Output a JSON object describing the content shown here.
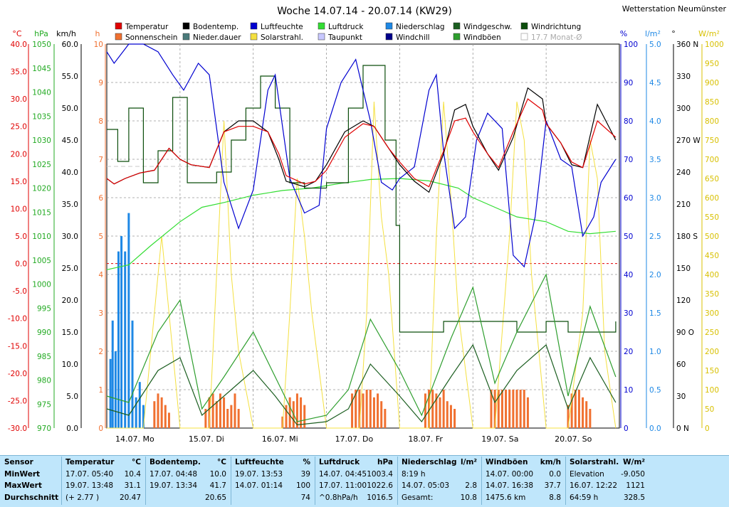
{
  "header": {
    "title": "Woche 14.07.14 - 20.07.14 (KW29)",
    "station": "Wetterstation Neumünster"
  },
  "legend": [
    {
      "label": "Temperatur",
      "color": "#e00000"
    },
    {
      "label": "Bodentemp.",
      "color": "#000000"
    },
    {
      "label": "Luftfeuchte",
      "color": "#0000d0"
    },
    {
      "label": "Luftdruck",
      "color": "#33dd33"
    },
    {
      "label": "Niederschlag",
      "color": "#1e88e5"
    },
    {
      "label": "Windgeschw.",
      "color": "#1b5e20"
    },
    {
      "label": "Windrichtung",
      "color": "#0b4d0b"
    },
    {
      "label": "Sonnenschein",
      "color": "#f07030"
    },
    {
      "label": "Nieder.dauer",
      "color": "#4a7a7a"
    },
    {
      "label": "Solarstrahl.",
      "color": "#f4e040"
    },
    {
      "label": "Taupunkt",
      "color": "#c8c8ff"
    },
    {
      "label": "Windchill",
      "color": "#00008b"
    },
    {
      "label": "Windböen",
      "color": "#2e9e2e"
    },
    {
      "label": "17.7 Monat-Ø",
      "color": "#d0d0d0"
    }
  ],
  "axes_units": {
    "temp": "°C",
    "pressure": "hPa",
    "wind": "km/h",
    "sun": "h",
    "humidity": "%",
    "rain": "l/m²",
    "direction": "°",
    "solar": "W/m²"
  },
  "chart_data": {
    "type": "line",
    "title": "Woche 14.07.14 - 20.07.14 (KW29)",
    "x_days": [
      "14.07. Mo",
      "15.07. Di",
      "16.07. Mi",
      "17.07. Do",
      "18.07. Fr",
      "19.07. Sa",
      "20.07. So"
    ],
    "axes": {
      "temp_c": {
        "min": -30,
        "max": 40,
        "ticks": [
          "40.0",
          "35.0",
          "30.0",
          "25.0",
          "20.0",
          "15.0",
          "10.0",
          "5.0",
          "0.0",
          "-5.0",
          "-10.0",
          "-15.0",
          "-20.0",
          "-25.0",
          "-30.0"
        ]
      },
      "pressure_hpa": {
        "min": 970,
        "max": 1050,
        "ticks": [
          "1050",
          "1045",
          "1040",
          "1035",
          "1030",
          "1025",
          "1020",
          "1015",
          "1010",
          "1005",
          "1000",
          "995",
          "990",
          "985",
          "980",
          "975",
          "970"
        ]
      },
      "wind_kmh": {
        "min": 0,
        "max": 60,
        "ticks": [
          "60.0",
          "55.0",
          "50.0",
          "45.0",
          "40.0",
          "35.0",
          "30.0",
          "25.0",
          "20.0",
          "15.0",
          "10.0",
          "5.0",
          "0.0"
        ]
      },
      "sun_h": {
        "min": 0,
        "max": 10,
        "ticks": [
          "10",
          "9",
          "8",
          "7",
          "6",
          "5",
          "4",
          "3",
          "2",
          "1",
          "0"
        ]
      },
      "humidity_pct": {
        "min": 0,
        "max": 100,
        "ticks": [
          "100",
          "90",
          "80",
          "70",
          "60",
          "50",
          "40",
          "30",
          "20",
          "10",
          "0"
        ]
      },
      "rain_lm2": {
        "min": 0,
        "max": 5,
        "ticks": [
          "5.0",
          "4.5",
          "4.0",
          "3.5",
          "3.0",
          "2.5",
          "2.0",
          "1.5",
          "1.0",
          "0.5",
          "0.0"
        ]
      },
      "direction_deg": {
        "min": 0,
        "max": 360,
        "ticks": [
          "360 N",
          "330",
          "300",
          "270 W",
          "240",
          "210",
          "180 S",
          "150",
          "120",
          "90 O",
          "60",
          "30",
          "0 N"
        ]
      },
      "solar_wm2": {
        "min": 0,
        "max": 1000,
        "ticks": [
          "1000",
          "950",
          "900",
          "850",
          "800",
          "750",
          "700",
          "650",
          "600",
          "550",
          "500",
          "450",
          "400",
          "350",
          "300",
          "250",
          "200",
          "150",
          "100",
          "50",
          "0"
        ]
      }
    },
    "series": [
      {
        "name": "Temperatur",
        "unit": "°C",
        "x": [
          0,
          0.1,
          0.25,
          0.45,
          0.65,
          0.85,
          1,
          1.15,
          1.4,
          1.6,
          1.8,
          2,
          2.2,
          2.35,
          2.45,
          2.7,
          2.85,
          3,
          3.25,
          3.5,
          3.65,
          3.85,
          4,
          4.2,
          4.4,
          4.6,
          4.75,
          4.9,
          5,
          5.2,
          5.35,
          5.55,
          5.75,
          5.95,
          6,
          6.2,
          6.35,
          6.5,
          6.7,
          6.95
        ],
        "y": [
          15.5,
          14.5,
          15.5,
          16.5,
          17,
          21,
          19,
          18,
          17.5,
          24,
          25,
          25,
          24,
          20,
          16,
          14.5,
          15,
          17,
          23,
          25.5,
          25,
          21,
          18.5,
          15.5,
          14,
          20.5,
          26,
          26.5,
          24,
          20,
          17.5,
          24,
          30,
          28,
          25.5,
          22,
          18.5,
          17.5,
          26,
          23
        ]
      },
      {
        "name": "Bodentemp.",
        "unit": "°C",
        "x": [
          0,
          0.1,
          0.25,
          0.45,
          0.65,
          0.85,
          1,
          1.15,
          1.4,
          1.6,
          1.8,
          2,
          2.2,
          2.35,
          2.45,
          2.7,
          2.85,
          3,
          3.25,
          3.5,
          3.65,
          3.85,
          4,
          4.2,
          4.4,
          4.6,
          4.75,
          4.9,
          5,
          5.2,
          5.35,
          5.55,
          5.75,
          5.95,
          6,
          6.2,
          6.35,
          6.5,
          6.7,
          6.95
        ],
        "y": [
          15.5,
          14.5,
          15.5,
          16.5,
          17,
          21,
          19,
          18,
          17.5,
          24,
          26,
          26,
          24,
          19,
          15,
          14,
          15,
          18,
          24,
          26,
          25,
          21,
          18,
          15,
          13,
          20,
          28,
          29,
          25,
          20,
          17,
          23,
          32,
          30,
          25.5,
          22,
          18,
          17.5,
          29,
          22.5
        ]
      },
      {
        "name": "Luftfeuchte",
        "unit": "%",
        "x": [
          0,
          0.1,
          0.3,
          0.5,
          0.7,
          0.9,
          1.05,
          1.25,
          1.4,
          1.6,
          1.8,
          2,
          2.2,
          2.3,
          2.5,
          2.7,
          2.9,
          3,
          3.2,
          3.4,
          3.6,
          3.75,
          3.9,
          4,
          4.2,
          4.4,
          4.5,
          4.6,
          4.75,
          4.9,
          5.05,
          5.2,
          5.4,
          5.55,
          5.7,
          5.85,
          6,
          6.2,
          6.35,
          6.5,
          6.65,
          6.75,
          6.95
        ],
        "y": [
          98,
          95,
          100,
          100,
          98,
          92,
          88,
          95,
          92,
          64,
          52,
          62,
          88,
          92,
          65,
          56,
          58,
          78,
          90,
          96,
          80,
          64,
          62,
          65,
          68,
          88,
          92,
          72,
          52,
          55,
          75,
          82,
          78,
          45,
          42,
          55,
          80,
          70,
          68,
          50,
          55,
          64,
          70
        ]
      },
      {
        "name": "Luftdruck",
        "unit": "hPa",
        "x": [
          0,
          0.3,
          0.6,
          1,
          1.3,
          1.6,
          2,
          2.4,
          2.8,
          3,
          3.2,
          3.6,
          4,
          4.4,
          4.8,
          5,
          5.3,
          5.6,
          6,
          6.3,
          6.6,
          6.95
        ],
        "y": [
          1003,
          1004,
          1008,
          1013,
          1016,
          1017,
          1018.5,
          1019.5,
          1020,
          1020.5,
          1021,
          1021.8,
          1022,
          1021.5,
          1020,
          1018,
          1016,
          1014,
          1013,
          1011,
          1010.5,
          1011
        ]
      },
      {
        "name": "Niederschlag",
        "unit": "l/m²",
        "x": [
          0.05,
          0.08,
          0.12,
          0.16,
          0.2,
          0.25,
          0.3,
          0.35,
          0.4,
          0.45,
          0.5
        ],
        "y": [
          0.9,
          1.4,
          1.0,
          2.3,
          2.5,
          2.3,
          2.8,
          1.4,
          0.4,
          0.6,
          0.3
        ]
      },
      {
        "name": "Windgeschw.",
        "unit": "km/h",
        "x": [
          0,
          0.3,
          0.7,
          1,
          1.3,
          1.6,
          2,
          2.3,
          2.6,
          3,
          3.3,
          3.6,
          4,
          4.3,
          4.7,
          5,
          5.3,
          5.6,
          6,
          6.3,
          6.6,
          6.95
        ],
        "y": [
          3,
          2,
          9,
          11,
          2,
          5,
          9,
          5,
          0.5,
          1,
          3,
          10,
          5,
          1,
          8,
          13,
          4,
          9,
          13,
          3,
          11,
          4
        ]
      },
      {
        "name": "Windböen",
        "unit": "km/h",
        "x": [
          0,
          0.3,
          0.7,
          1,
          1.3,
          1.6,
          2,
          2.3,
          2.6,
          3,
          3.3,
          3.6,
          4,
          4.3,
          4.7,
          5,
          5.3,
          5.6,
          6,
          6.3,
          6.6,
          6.95
        ],
        "y": [
          5,
          4,
          15,
          20,
          3,
          8,
          15,
          8,
          1,
          2,
          6,
          17,
          9,
          2,
          14,
          22,
          7,
          15,
          24,
          5,
          19,
          8
        ]
      },
      {
        "name": "Windrichtung",
        "unit": "°",
        "x": [
          0,
          0.15,
          0.3,
          0.5,
          0.7,
          0.9,
          1.1,
          1.3,
          1.5,
          1.7,
          1.9,
          2.1,
          2.3,
          2.5,
          2.7,
          3,
          3.3,
          3.5,
          3.8,
          3.95,
          4,
          4.3,
          4.6,
          5,
          5.3,
          5.6,
          6,
          6.3,
          6.6,
          6.95
        ],
        "y": [
          280,
          250,
          300,
          230,
          260,
          310,
          230,
          230,
          240,
          270,
          300,
          330,
          300,
          230,
          225,
          230,
          300,
          340,
          270,
          190,
          90,
          90,
          100,
          100,
          100,
          90,
          100,
          90,
          90,
          100
        ]
      },
      {
        "name": "Solarstrahl.",
        "unit": "W/m²",
        "x": [
          0,
          0.5,
          0.65,
          0.75,
          0.85,
          1,
          1.4,
          1.5,
          1.6,
          1.7,
          1.8,
          2,
          2.4,
          2.5,
          2.6,
          2.7,
          2.8,
          3,
          3.45,
          3.55,
          3.65,
          3.75,
          3.85,
          4,
          4.4,
          4.5,
          4.6,
          4.7,
          4.8,
          5,
          5.3,
          5.5,
          5.6,
          5.7,
          5.8,
          6,
          6.3,
          6.5,
          6.6,
          6.7,
          6.8,
          6.95
        ],
        "y": [
          0,
          0,
          300,
          500,
          300,
          0,
          0,
          400,
          800,
          400,
          200,
          0,
          0,
          300,
          650,
          500,
          300,
          0,
          0,
          300,
          850,
          550,
          400,
          0,
          0,
          500,
          850,
          600,
          300,
          0,
          0,
          500,
          850,
          750,
          400,
          0,
          0,
          300,
          750,
          650,
          200,
          0
        ]
      },
      {
        "name": "Sonnenschein",
        "unit": "h",
        "x": [
          0.65,
          0.7,
          0.75,
          0.8,
          0.85,
          1.35,
          1.4,
          1.45,
          1.5,
          1.55,
          1.6,
          1.65,
          1.7,
          1.75,
          1.8,
          2.4,
          2.45,
          2.5,
          2.55,
          2.6,
          2.65,
          2.7,
          3.35,
          3.4,
          3.45,
          3.5,
          3.55,
          3.6,
          3.65,
          3.7,
          3.75,
          3.8,
          4.35,
          4.4,
          4.45,
          4.5,
          4.55,
          4.6,
          4.65,
          4.7,
          4.75,
          5.25,
          5.3,
          5.35,
          5.4,
          5.45,
          5.5,
          5.55,
          5.6,
          5.65,
          5.7,
          5.75,
          6.3,
          6.35,
          6.4,
          6.45,
          6.5,
          6.55,
          6.6
        ],
        "y": [
          0.7,
          0.9,
          0.8,
          0.6,
          0.4,
          0.5,
          0.8,
          0.9,
          0.7,
          0.9,
          0.8,
          0.5,
          0.6,
          0.9,
          0.5,
          0.3,
          0.6,
          0.8,
          0.7,
          0.9,
          0.8,
          0.6,
          0.9,
          1.0,
          1.0,
          0.9,
          1.0,
          1.0,
          0.8,
          0.9,
          0.7,
          0.5,
          0.9,
          1.0,
          1.0,
          0.9,
          0.8,
          1.0,
          0.7,
          0.6,
          0.5,
          1.0,
          1.0,
          1.0,
          1.0,
          1.0,
          1.0,
          1.0,
          1.0,
          1.0,
          1.0,
          0.8,
          0.6,
          0.9,
          1.0,
          1.0,
          0.8,
          0.7,
          0.5
        ]
      }
    ],
    "reference_line": {
      "name": "17.7 Monat-Ø",
      "value": 17.7,
      "unit": "°C"
    },
    "zero_line": {
      "value": 0.0,
      "unit": "°C"
    }
  },
  "stats": {
    "row_labels": [
      "Sensor",
      "MinWert",
      "MaxWert",
      "Durchschnitt"
    ],
    "columns": [
      {
        "name": "Temperatur",
        "unit": "°C",
        "rows": [
          [
            "17.07.  05:40",
            "10.4"
          ],
          [
            "19.07.  13:48",
            "31.1"
          ],
          [
            "(+ 2.77 )",
            "20.47"
          ]
        ]
      },
      {
        "name": "Bodentemp.",
        "unit": "°C",
        "rows": [
          [
            "17.07.  04:48",
            "10.0"
          ],
          [
            "19.07.  13:34",
            "41.7"
          ],
          [
            "",
            "20.65"
          ]
        ]
      },
      {
        "name": "Luftfeuchte",
        "unit": "%",
        "rows": [
          [
            "19.07.  13:53",
            "39"
          ],
          [
            "14.07.  01:14",
            "100"
          ],
          [
            "",
            "74"
          ]
        ]
      },
      {
        "name": "Luftdruck",
        "unit": "hPa",
        "rows": [
          [
            "14.07.  04:45",
            "1003.4"
          ],
          [
            "17.07.  11:00",
            "1022.6"
          ],
          [
            "^0.8hPa/h",
            "1016.5"
          ]
        ]
      },
      {
        "name": "Niederschlag",
        "unit": "l/m²",
        "rows": [
          [
            "8:19 h",
            ""
          ],
          [
            "14.07.  05:03",
            "2.8"
          ],
          [
            "Gesamt:",
            "10.8"
          ]
        ]
      },
      {
        "name": "Windböen",
        "unit": "km/h",
        "rows": [
          [
            "14.07.  00:00",
            "0.0"
          ],
          [
            "14.07.  16:38",
            "37.7"
          ],
          [
            "1475.6 km",
            "8.8"
          ]
        ]
      },
      {
        "name": "Solarstrahl.",
        "unit": "W/m²",
        "rows": [
          [
            "Elevation",
            "-9.050"
          ],
          [
            "16.07.  12:22",
            "1121"
          ],
          [
            "64:59 h",
            "328.5"
          ]
        ]
      }
    ]
  }
}
